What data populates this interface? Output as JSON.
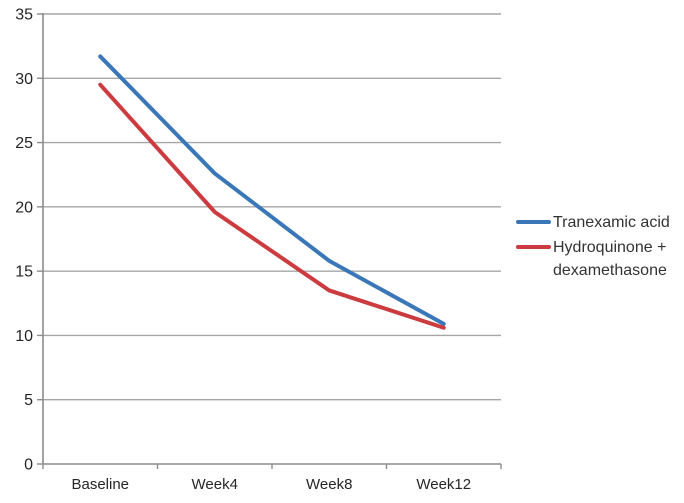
{
  "chart_data": {
    "type": "line",
    "title": "",
    "xlabel": "",
    "ylabel": "",
    "categories": [
      "Baseline",
      "Week4",
      "Week8",
      "Week12"
    ],
    "series": [
      {
        "name": "Tranexamic acid",
        "color": "#3a77b8",
        "values": [
          31.7,
          22.6,
          15.8,
          10.9
        ]
      },
      {
        "name": "Hydroquinone + dexamethasone",
        "color": "#cb3b3f",
        "values": [
          29.5,
          19.6,
          13.5,
          10.6
        ]
      }
    ],
    "ylim": [
      0,
      35
    ],
    "ytick_step": 5,
    "y_tick_labels": [
      "0",
      "5",
      "10",
      "15",
      "20",
      "25",
      "30",
      "35"
    ],
    "grid": true,
    "legend_position": "right",
    "colors": {
      "gridline": "#a6a6a6",
      "axis": "#8c8c8c",
      "tick_text": "#262626",
      "legend_text": "#333333"
    }
  }
}
